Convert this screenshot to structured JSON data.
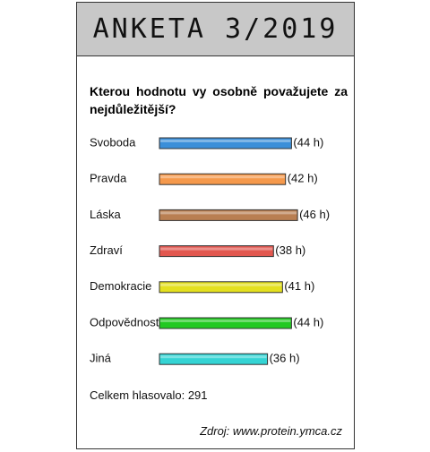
{
  "chart_data": {
    "type": "bar",
    "orientation": "horizontal",
    "title": "ANKETA 3/2019",
    "question": "Kterou hodnotu vy osobně považujete za nejdůležitější?",
    "categories": [
      "Svoboda",
      "Pravda",
      "Láska",
      "Zdraví",
      "Demokracie",
      "Odpovědnost",
      "Jiná"
    ],
    "values": [
      44,
      42,
      46,
      38,
      41,
      44,
      36
    ],
    "value_labels": [
      "(44 h)",
      "(42 h)",
      "(46 h)",
      "(38 h)",
      "(41 h)",
      "(44 h)",
      "(36 h)"
    ],
    "colors": [
      "#3b8fd9",
      "#f5994c",
      "#b97f52",
      "#e2574f",
      "#e4e01f",
      "#22c922",
      "#34d4d4"
    ],
    "total": "Celkem hlasovalo: 291",
    "source": "Zdroj: www.protein.ymca.cz"
  }
}
